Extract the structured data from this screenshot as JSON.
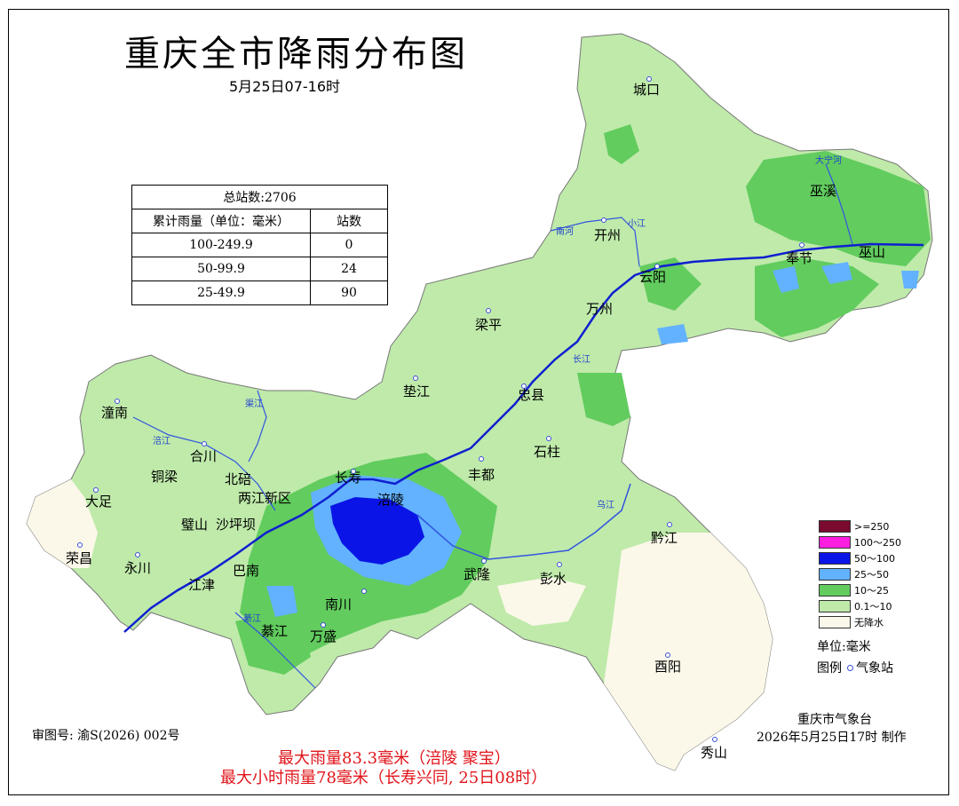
{
  "title": "重庆全市降雨分布图",
  "subtitle": "5月25日07-16时",
  "stats_table": {
    "total": "总站数:2706",
    "header_range": "累计雨量（单位：毫米）",
    "header_count": "站数",
    "rows": [
      {
        "range": "100-249.9",
        "count": "0"
      },
      {
        "range": "50-99.9",
        "count": "24"
      },
      {
        "range": "25-49.9",
        "count": "90"
      }
    ]
  },
  "legend": {
    "items": [
      {
        "label": ">=250",
        "color": "#7a0a2e"
      },
      {
        "label": "100～250",
        "color": "#ff1ee0"
      },
      {
        "label": "50～100",
        "color": "#0a14e6"
      },
      {
        "label": "25～50",
        "color": "#62b2ff"
      },
      {
        "label": "10～25",
        "color": "#62cc5e"
      },
      {
        "label": "0.1～10",
        "color": "#bfeaaa"
      },
      {
        "label": "无降水",
        "color": "#fbf8e9"
      }
    ],
    "unit": "单位:毫米",
    "legend_label": "图例",
    "station_label": "气象站"
  },
  "cities": [
    {
      "name": "城口"
    },
    {
      "name": "巫溪"
    },
    {
      "name": "开州"
    },
    {
      "name": "奉节"
    },
    {
      "name": "巫山"
    },
    {
      "name": "云阳"
    },
    {
      "name": "万州"
    },
    {
      "name": "梁平"
    },
    {
      "name": "垫江"
    },
    {
      "name": "忠县"
    },
    {
      "name": "石柱"
    },
    {
      "name": "丰都"
    },
    {
      "name": "长寿"
    },
    {
      "name": "涪陵"
    },
    {
      "name": "潼南"
    },
    {
      "name": "合川"
    },
    {
      "name": "铜梁"
    },
    {
      "name": "北碚"
    },
    {
      "name": "两江新区"
    },
    {
      "name": "大足"
    },
    {
      "name": "璧山"
    },
    {
      "name": "沙坪坝"
    },
    {
      "name": "荣昌"
    },
    {
      "name": "永川"
    },
    {
      "name": "江津"
    },
    {
      "name": "巴南"
    },
    {
      "name": "南川"
    },
    {
      "name": "武隆"
    },
    {
      "name": "彭水"
    },
    {
      "name": "黔江"
    },
    {
      "name": "綦江"
    },
    {
      "name": "万盛"
    },
    {
      "name": "酉阳"
    },
    {
      "name": "秀山"
    }
  ],
  "rivers": [
    {
      "name": "大宁河"
    },
    {
      "name": "南河"
    },
    {
      "name": "小江"
    },
    {
      "name": "长江"
    },
    {
      "name": "涪江"
    },
    {
      "name": "渠江"
    },
    {
      "name": "乌江"
    },
    {
      "name": "綦江"
    }
  ],
  "footer": {
    "review_no": "审图号: 渝S(2026) 002号",
    "agency": "重庆市气象台",
    "made": "2026年5月25日17时 制作",
    "max_rain": "最大雨量83.3毫米（涪陵 聚宝）",
    "max_hourly": "最大小时雨量78毫米（长寿兴同, 25日08时）"
  }
}
